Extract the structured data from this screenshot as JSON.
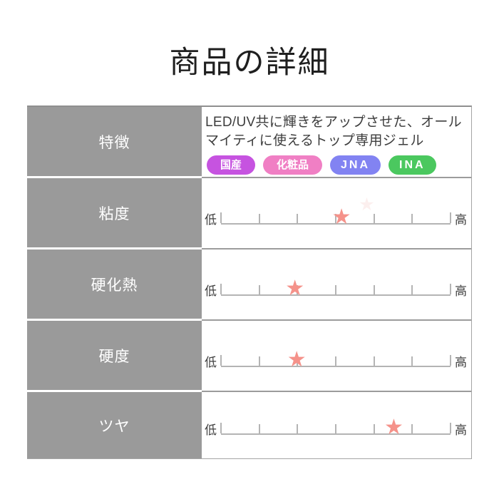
{
  "page": {
    "title": "商品の詳細"
  },
  "table": {
    "label_column_color": "#9a9a9a",
    "scale_line_color": "#b4b4b4",
    "star_color": "#f5928a",
    "rows": [
      {
        "label": "特徴",
        "type": "feature",
        "description": "LED/UV共に輝きをアップさせた、オールマイティに使えるトップ専用ジェル",
        "badges": [
          {
            "label": "国産",
            "color": "#c653e0"
          },
          {
            "label": "化粧品",
            "color": "#f07fc4"
          },
          {
            "label": "JNA",
            "color": "#8283f2"
          },
          {
            "label": "INA",
            "color": "#4bc85f"
          }
        ]
      },
      {
        "label": "粘度",
        "type": "scale",
        "low_label": "低",
        "high_label": "高",
        "tick_count": 7,
        "star_position_pct": 52.5,
        "value_0to6": 3.2,
        "ghost_star_pct": 63.5
      },
      {
        "label": "硬化熱",
        "type": "scale",
        "low_label": "低",
        "high_label": "高",
        "tick_count": 7,
        "star_position_pct": 32.2,
        "value_0to6": 1.9
      },
      {
        "label": "硬度",
        "type": "scale",
        "low_label": "低",
        "high_label": "高",
        "tick_count": 7,
        "star_position_pct": 33.0,
        "value_0to6": 2.0
      },
      {
        "label": "ツヤ",
        "type": "scale",
        "low_label": "低",
        "high_label": "高",
        "tick_count": 7,
        "star_position_pct": 75.3,
        "value_0to6": 4.5
      }
    ]
  }
}
